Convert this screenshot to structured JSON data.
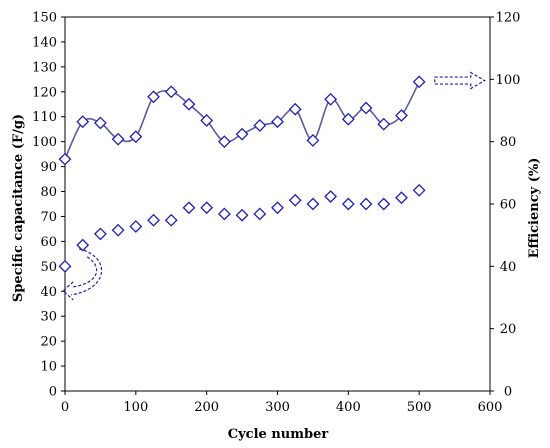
{
  "chart_data": {
    "type": "scatter",
    "xlabel": "Cycle number",
    "ylabel": "Specific capacitance (F/g)",
    "y2label": "Efficiency (%)",
    "xlim": [
      0,
      600
    ],
    "ylim": [
      0,
      150
    ],
    "y2lim": [
      0,
      120
    ],
    "xticks": [
      "0",
      "100",
      "200",
      "300",
      "400",
      "500",
      "600"
    ],
    "yticks": [
      "0",
      "10",
      "20",
      "30",
      "40",
      "50",
      "60",
      "70",
      "80",
      "90",
      "100",
      "110",
      "120",
      "130",
      "140",
      "150"
    ],
    "y2ticks": [
      "0",
      "20",
      "40",
      "60",
      "80",
      "100",
      "120"
    ],
    "grid": false,
    "colors": {
      "series": "#1f1fb4",
      "line": "#5a5a9e",
      "arrow": "#1f1fb4",
      "axis": "#000000"
    },
    "series": [
      {
        "axis": "left",
        "marker": "diamond",
        "smoothed_line": true,
        "x": [
          0,
          25,
          50,
          75,
          100,
          125,
          150,
          175,
          200,
          225,
          250,
          275,
          300,
          325,
          350,
          375,
          400,
          425,
          450,
          475,
          500
        ],
        "values": [
          93,
          108,
          107.5,
          101,
          102,
          118,
          120,
          115,
          108.5,
          100,
          103,
          106.5,
          108,
          113,
          100.5,
          117,
          109,
          113.5,
          107,
          110.5,
          124
        ]
      },
      {
        "axis": "left",
        "marker": "diamond",
        "smoothed_line": false,
        "x": [
          0,
          25,
          50,
          75,
          100,
          125,
          150,
          175,
          200,
          225,
          250,
          275,
          300,
          325,
          350,
          375,
          400,
          425,
          450,
          475,
          500
        ],
        "values": [
          50,
          58.5,
          63,
          64.5,
          66,
          68.5,
          68.5,
          73.5,
          73.5,
          71,
          70.5,
          71,
          73.5,
          76.5,
          75,
          78,
          75,
          75,
          75,
          77.5,
          80.5
        ]
      }
    ],
    "annotations": [
      {
        "type": "arrow",
        "direction": "right",
        "target_axis": "right",
        "near_series": 0
      },
      {
        "type": "curved-arrow",
        "direction": "left",
        "target_axis": "left",
        "near_series": 1
      }
    ]
  }
}
